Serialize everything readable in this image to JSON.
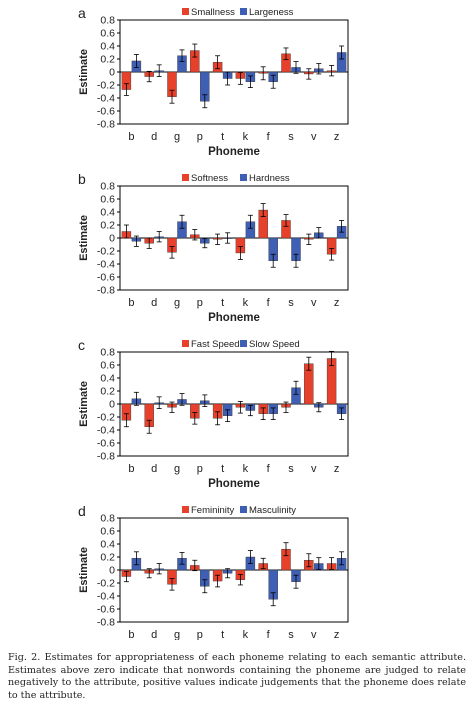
{
  "caption": "Fig. 2. Estimates for appropriateness of each phoneme relating to each semantic attribute. Estimates above zero indicate that nonwords containing the phoneme are judged to relate negatively to the attribute, positive values indicate judgements that the phoneme does relate to the attribute.",
  "colors": {
    "series1": "#e8412b",
    "series2": "#3f5fb5",
    "error_bar": "#000000",
    "frame": "#000000"
  },
  "chart_data": [
    {
      "panel_label": "a",
      "type": "bar",
      "categories": [
        "b",
        "d",
        "g",
        "p",
        "t",
        "k",
        "f",
        "s",
        "v",
        "z"
      ],
      "xlabel": "Phoneme",
      "ylabel": "Estimate",
      "ylim": [
        -0.8,
        0.8
      ],
      "yticks": [
        "0.8",
        "0.6",
        "0.4",
        "0.2",
        "0",
        "-0.2",
        "-0.4",
        "-0.6",
        "-0.8"
      ],
      "legend_position": "top-center",
      "series": [
        {
          "name": "Smallness",
          "values": [
            -0.27,
            -0.07,
            -0.38,
            0.33,
            0.15,
            -0.1,
            -0.02,
            0.28,
            -0.03,
            0.02
          ],
          "errors": [
            0.09,
            0.08,
            0.1,
            0.1,
            0.1,
            0.09,
            0.1,
            0.09,
            0.08,
            0.08
          ]
        },
        {
          "name": "Largeness",
          "values": [
            0.17,
            0.02,
            0.25,
            -0.45,
            -0.1,
            -0.15,
            -0.15,
            0.07,
            0.05,
            0.3
          ],
          "errors": [
            0.1,
            0.09,
            0.09,
            0.1,
            0.1,
            0.09,
            0.1,
            0.09,
            0.08,
            0.1
          ]
        }
      ]
    },
    {
      "panel_label": "b",
      "type": "bar",
      "categories": [
        "b",
        "d",
        "g",
        "p",
        "t",
        "k",
        "f",
        "s",
        "v",
        "z"
      ],
      "xlabel": "Phoneme",
      "ylabel": "Estimate",
      "ylim": [
        -0.8,
        0.8
      ],
      "yticks": [
        "0.8",
        "0.6",
        "0.4",
        "0.2",
        "0",
        "-0.2",
        "-0.4",
        "-0.6",
        "-0.8"
      ],
      "legend_position": "top-center",
      "series": [
        {
          "name": "Softness",
          "values": [
            0.1,
            -0.08,
            -0.22,
            0.05,
            -0.02,
            -0.23,
            0.43,
            0.27,
            -0.02,
            -0.25
          ],
          "errors": [
            0.1,
            0.08,
            0.09,
            0.08,
            0.08,
            0.1,
            0.1,
            0.09,
            0.08,
            0.09
          ]
        },
        {
          "name": "Hardness",
          "values": [
            -0.05,
            0.02,
            0.25,
            -0.08,
            0.0,
            0.25,
            -0.35,
            -0.35,
            0.08,
            0.18
          ],
          "errors": [
            0.08,
            0.08,
            0.1,
            0.07,
            0.08,
            0.1,
            0.1,
            0.1,
            0.08,
            0.09
          ]
        }
      ]
    },
    {
      "panel_label": "c",
      "type": "bar",
      "categories": [
        "b",
        "d",
        "g",
        "p",
        "t",
        "k",
        "f",
        "s",
        "v",
        "z"
      ],
      "xlabel": "Phoneme",
      "ylabel": "Estimate",
      "ylim": [
        -0.8,
        0.8
      ],
      "yticks": [
        "0.8",
        "0.6",
        "0.4",
        "0.2",
        "0",
        "-0.2",
        "-0.4",
        "-0.6",
        "-0.8"
      ],
      "legend_position": "top-center",
      "series": [
        {
          "name": "Fast Speed",
          "values": [
            -0.25,
            -0.35,
            -0.05,
            -0.22,
            -0.22,
            -0.05,
            -0.15,
            -0.05,
            0.62,
            0.7
          ],
          "errors": [
            0.1,
            0.1,
            0.08,
            0.09,
            0.1,
            0.09,
            0.09,
            0.08,
            0.1,
            0.11
          ]
        },
        {
          "name": "Slow Speed",
          "values": [
            0.08,
            0.02,
            0.07,
            0.05,
            -0.18,
            -0.1,
            -0.15,
            0.25,
            -0.05,
            -0.15
          ],
          "errors": [
            0.1,
            0.09,
            0.09,
            0.09,
            0.09,
            0.08,
            0.09,
            0.1,
            0.07,
            0.09
          ]
        }
      ]
    },
    {
      "panel_label": "d",
      "type": "bar",
      "categories": [
        "b",
        "d",
        "g",
        "p",
        "t",
        "k",
        "f",
        "s",
        "v",
        "z"
      ],
      "xlabel": "Phoneme",
      "ylabel": "Estimate",
      "ylim": [
        -0.8,
        0.8
      ],
      "yticks": [
        "0.8",
        "0.6",
        "0.4",
        "0.2",
        "0",
        "-0.2",
        "-0.4",
        "-0.6",
        "-0.8"
      ],
      "legend_position": "top-center",
      "series": [
        {
          "name": "Femininity",
          "values": [
            -0.1,
            -0.05,
            -0.22,
            0.07,
            -0.17,
            -0.15,
            0.1,
            0.32,
            0.15,
            0.1
          ],
          "errors": [
            0.08,
            0.07,
            0.09,
            0.08,
            0.09,
            0.08,
            0.08,
            0.1,
            0.1,
            0.09
          ]
        },
        {
          "name": "Masculinity",
          "values": [
            0.18,
            0.02,
            0.18,
            -0.25,
            -0.05,
            0.2,
            -0.45,
            -0.18,
            0.1,
            0.18
          ],
          "errors": [
            0.1,
            0.08,
            0.09,
            0.1,
            0.07,
            0.1,
            0.1,
            0.1,
            0.09,
            0.1
          ]
        }
      ]
    }
  ]
}
